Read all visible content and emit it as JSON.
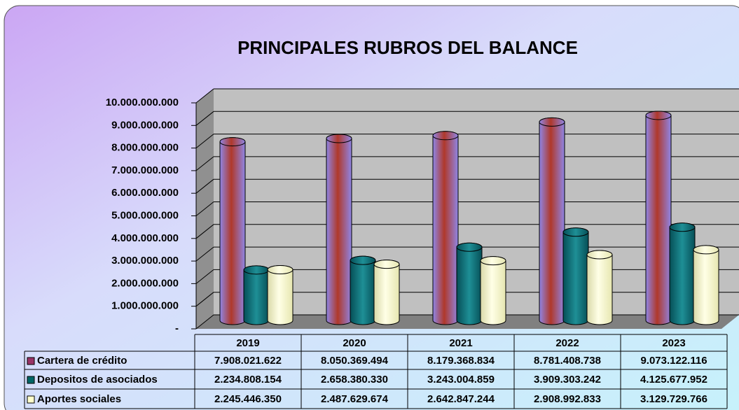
{
  "chart_data": {
    "type": "bar3d",
    "title": "PRINCIPALES  RUBROS  DEL BALANCE",
    "categories": [
      "2019",
      "2020",
      "2021",
      "2022",
      "2023"
    ],
    "series": [
      {
        "name": "Cartera de crédito",
        "color": "#993366",
        "values": [
          7908021622,
          8050369494,
          8179368834,
          8781408738,
          9073122116
        ],
        "value_labels": [
          "7.908.021.622",
          "8.050.369.494",
          "8.179.368.834",
          "8.781.408.738",
          "9.073.122.116"
        ]
      },
      {
        "name": "Depositos de asociados",
        "color": "#006666",
        "values": [
          2234808154,
          2658380330,
          3243004859,
          3909303242,
          4125677952
        ],
        "value_labels": [
          "2.234.808.154",
          "2.658.380.330",
          "3.243.004.859",
          "3.909.303.242",
          "4.125.677.952"
        ]
      },
      {
        "name": "Aportes sociales",
        "color": "#ffffcc",
        "values": [
          2245446350,
          2487629674,
          2642847244,
          2908992833,
          3129729766
        ],
        "value_labels": [
          "2.245.446.350",
          "2.487.629.674",
          "2.642.847.244",
          "2.908.992.833",
          "3.129.729.766"
        ]
      }
    ],
    "ylim": [
      0,
      10000000000
    ],
    "yticks": [
      {
        "value": 0,
        "label": "-"
      },
      {
        "value": 1000000000,
        "label": "1.000.000.000"
      },
      {
        "value": 2000000000,
        "label": "2.000.000.000"
      },
      {
        "value": 3000000000,
        "label": "3.000.000.000"
      },
      {
        "value": 4000000000,
        "label": "4.000.000.000"
      },
      {
        "value": 5000000000,
        "label": "5.000.000.000"
      },
      {
        "value": 6000000000,
        "label": "6.000.000.000"
      },
      {
        "value": 7000000000,
        "label": "7.000.000.000"
      },
      {
        "value": 8000000000,
        "label": "8.000.000.000"
      },
      {
        "value": 9000000000,
        "label": "9.000.000.000"
      },
      {
        "value": 10000000000,
        "label": "10.000.000.000"
      }
    ],
    "grid": true
  }
}
